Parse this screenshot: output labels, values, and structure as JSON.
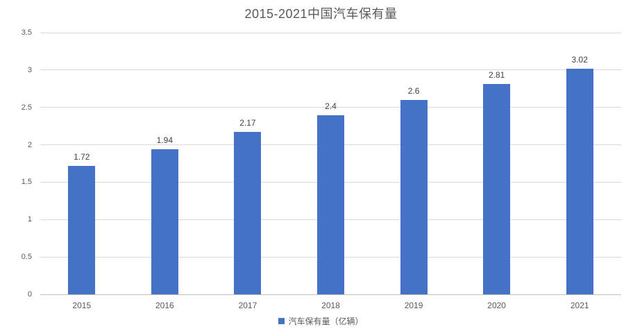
{
  "chart_data": {
    "type": "bar",
    "title": "2015-2021中国汽车保有量",
    "categories": [
      "2015",
      "2016",
      "2017",
      "2018",
      "2019",
      "2020",
      "2021"
    ],
    "series": [
      {
        "name": "汽车保有量（亿辆）",
        "values": [
          1.72,
          1.94,
          2.17,
          2.4,
          2.6,
          2.81,
          3.02
        ],
        "data_labels": [
          "1.72",
          "1.94",
          "2.17",
          "2.4",
          "2.6",
          "2.81",
          "3.02"
        ]
      }
    ],
    "xlabel": "",
    "ylabel": "",
    "ylim": [
      0,
      3.5
    ],
    "ytick_step": 0.5,
    "yticks": [
      "0",
      "0.5",
      "1",
      "1.5",
      "2",
      "2.5",
      "3",
      "3.5"
    ],
    "grid": true,
    "legend": {
      "label": "汽车保有量（亿辆）",
      "position": "bottom",
      "marker": "square"
    },
    "colors": {
      "bar": "#4472C4",
      "gridline": "#D9D9D9",
      "axis_line": "#BFBFBF",
      "title": "#595959",
      "tick": "#595959",
      "data_label": "#404040",
      "background": "#FFFFFF"
    }
  }
}
